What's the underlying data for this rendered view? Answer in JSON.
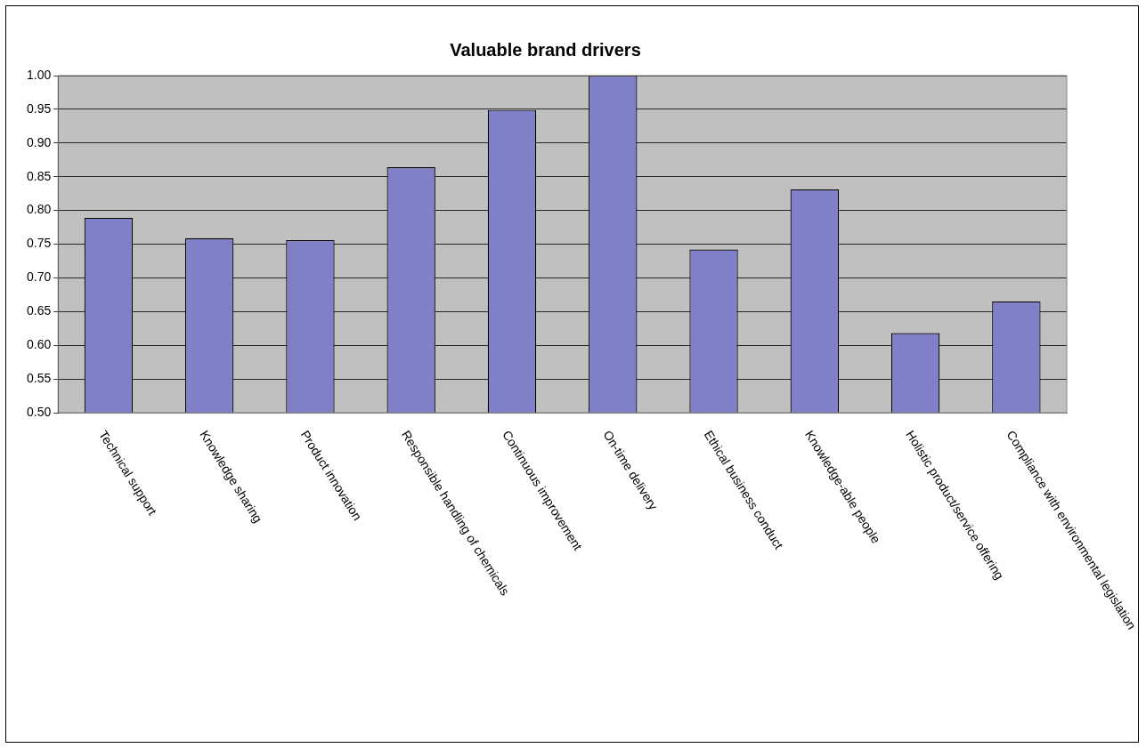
{
  "chart_data": {
    "type": "bar",
    "title": "Valuable brand drivers",
    "categories": [
      "Technical support",
      "Knowledge sharing",
      "Product innovation",
      "Responsible handling of chemicals",
      "Continuous improvement",
      "On-time delivery",
      "Ethical business conduct",
      "Knowledge-able people",
      "Holistic product/service offering",
      "Compliance with environmental legislation"
    ],
    "values": [
      0.789,
      0.759,
      0.756,
      0.864,
      0.949,
      1.0,
      0.742,
      0.831,
      0.618,
      0.665
    ],
    "color": "#8080c8",
    "ylim": [
      0.5,
      1.0
    ],
    "yticks": [
      {
        "value": 0.5,
        "label": "0.50"
      },
      {
        "value": 0.55,
        "label": "0.55"
      },
      {
        "value": 0.6,
        "label": "0.60"
      },
      {
        "value": 0.65,
        "label": "0.65"
      },
      {
        "value": 0.7,
        "label": "0.70"
      },
      {
        "value": 0.75,
        "label": "0.75"
      },
      {
        "value": 0.8,
        "label": "0.80"
      },
      {
        "value": 0.85,
        "label": "0.85"
      },
      {
        "value": 0.9,
        "label": "0.90"
      },
      {
        "value": 0.95,
        "label": "0.95"
      },
      {
        "value": 1.0,
        "label": "1.00"
      }
    ],
    "grid": "y",
    "legend": false
  }
}
